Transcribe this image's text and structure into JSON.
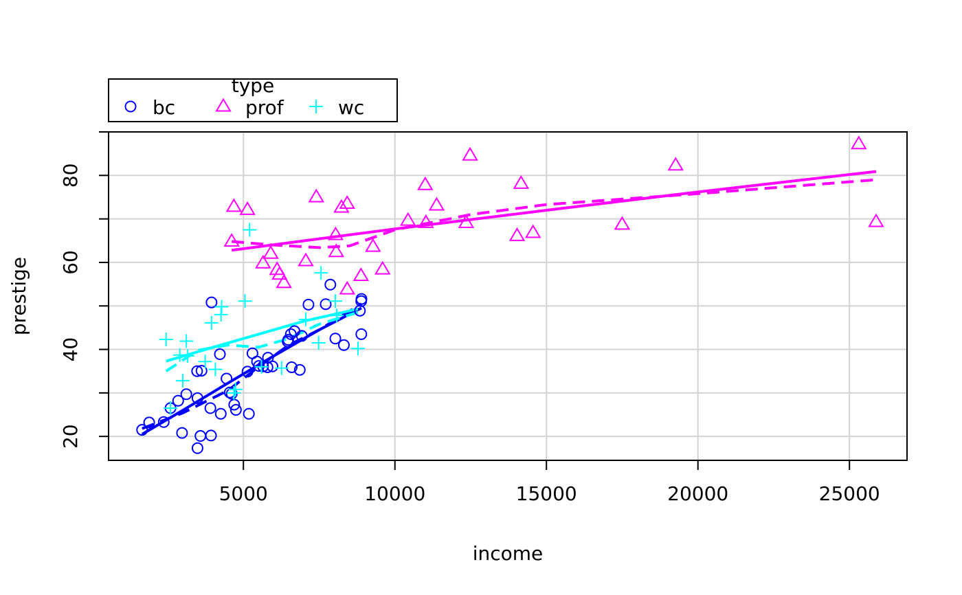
{
  "chart_data": {
    "type": "scatter",
    "xlabel": "income",
    "ylabel": "prestige",
    "xlim": [
      550,
      26900
    ],
    "ylim": [
      14.5,
      90
    ],
    "xticks": [
      5000,
      10000,
      15000,
      20000,
      25000
    ],
    "yticks": [
      20,
      40,
      60,
      80
    ],
    "grid": true,
    "legend": {
      "title": "type",
      "position": "top-left",
      "entries": [
        {
          "label": "bc",
          "marker": "circle",
          "color": "#0000ff"
        },
        {
          "label": "prof",
          "marker": "triangle",
          "color": "#ff00ff"
        },
        {
          "label": "wc",
          "marker": "plus",
          "color": "#00ffff"
        }
      ]
    },
    "series": [
      {
        "name": "bc",
        "marker": "circle",
        "color": "#0000ff",
        "points": [
          [
            1656,
            21.5
          ],
          [
            1890,
            23.2
          ],
          [
            2370,
            23.3
          ],
          [
            2594,
            26.5
          ],
          [
            2847,
            28.2
          ],
          [
            2975,
            20.8
          ],
          [
            3116,
            29.7
          ],
          [
            3485,
            28.8
          ],
          [
            3472,
            35.0
          ],
          [
            3617,
            35.1
          ],
          [
            3485,
            17.3
          ],
          [
            3582,
            20.1
          ],
          [
            3930,
            20.2
          ],
          [
            3910,
            26.5
          ],
          [
            3948,
            50.8
          ],
          [
            4224,
            38.9
          ],
          [
            4253,
            25.2
          ],
          [
            4443,
            33.3
          ],
          [
            4549,
            30.1
          ],
          [
            4614,
            29.8
          ],
          [
            4696,
            27.3
          ],
          [
            4753,
            26.1
          ],
          [
            5134,
            34.9
          ],
          [
            5180,
            25.2
          ],
          [
            5299,
            39.1
          ],
          [
            5449,
            37.2
          ],
          [
            5511,
            36.2
          ],
          [
            5648,
            36.1
          ],
          [
            5811,
            38.1
          ],
          [
            5795,
            35.9
          ],
          [
            5959,
            36.1
          ],
          [
            6462,
            41.8
          ],
          [
            6565,
            43.5
          ],
          [
            6686,
            44.2
          ],
          [
            6478,
            42.2
          ],
          [
            6593,
            35.9
          ],
          [
            6860,
            35.3
          ],
          [
            6928,
            43.1
          ],
          [
            7147,
            50.3
          ],
          [
            7716,
            50.4
          ],
          [
            7869,
            54.9
          ],
          [
            8034,
            42.5
          ],
          [
            8316,
            41.0
          ],
          [
            8845,
            48.9
          ],
          [
            8888,
            51.1
          ],
          [
            8895,
            51.6
          ],
          [
            8891,
            43.5
          ]
        ],
        "fit": [
          [
            1656,
            20.5
          ],
          [
            3000,
            26.0
          ],
          [
            4500,
            32.3
          ],
          [
            6000,
            38.5
          ],
          [
            7500,
            44.5
          ],
          [
            8895,
            49.5
          ]
        ],
        "smooth": [
          [
            1656,
            21.8
          ],
          [
            3000,
            25.4
          ],
          [
            4500,
            30.6
          ],
          [
            5500,
            36.0
          ],
          [
            6500,
            41.0
          ],
          [
            7500,
            44.5
          ],
          [
            8895,
            50.5
          ]
        ]
      },
      {
        "name": "prof",
        "marker": "triangle",
        "color": "#ff00ff",
        "points": [
          [
            4614,
            64.8
          ],
          [
            4686,
            72.8
          ],
          [
            5134,
            72.1
          ],
          [
            5648,
            59.8
          ],
          [
            5902,
            62.0
          ],
          [
            6112,
            58.3
          ],
          [
            6191,
            57.2
          ],
          [
            6336,
            55.3
          ],
          [
            7059,
            60.3
          ],
          [
            7405,
            75.0
          ],
          [
            8043,
            66.3
          ],
          [
            8062,
            62.4
          ],
          [
            8235,
            72.6
          ],
          [
            8424,
            73.5
          ],
          [
            8425,
            53.8
          ],
          [
            8880,
            56.9
          ],
          [
            9277,
            63.6
          ],
          [
            9593,
            58.4
          ],
          [
            10432,
            69.6
          ],
          [
            11000,
            77.8
          ],
          [
            11023,
            69.1
          ],
          [
            11377,
            73.1
          ],
          [
            12351,
            69.1
          ],
          [
            12480,
            84.6
          ],
          [
            14032,
            66.1
          ],
          [
            14163,
            78.1
          ],
          [
            14558,
            66.8
          ],
          [
            17498,
            68.7
          ],
          [
            19263,
            82.3
          ],
          [
            25308,
            87.2
          ],
          [
            25879,
            69.3
          ]
        ],
        "fit": [
          [
            4614,
            62.8
          ],
          [
            10000,
            67.7
          ],
          [
            15000,
            72.0
          ],
          [
            20000,
            76.2
          ],
          [
            25879,
            80.9
          ]
        ],
        "smooth": [
          [
            4614,
            64.8
          ],
          [
            6000,
            64.0
          ],
          [
            7500,
            63.4
          ],
          [
            8500,
            63.8
          ],
          [
            10000,
            67.5
          ],
          [
            12500,
            71.0
          ],
          [
            15000,
            73.3
          ],
          [
            20000,
            75.8
          ],
          [
            25879,
            79.0
          ]
        ]
      },
      {
        "name": "wc",
        "marker": "plus",
        "color": "#00ffff",
        "points": [
          [
            2448,
            42.3
          ],
          [
            2594,
            26.5
          ],
          [
            2901,
            38.7
          ],
          [
            3000,
            32.8
          ],
          [
            3116,
            41.9
          ],
          [
            3161,
            38.5
          ],
          [
            3739,
            37.2
          ],
          [
            3946,
            46.1
          ],
          [
            4075,
            35.4
          ],
          [
            4262,
            48.0
          ],
          [
            4282,
            49.8
          ],
          [
            4686,
            30.0
          ],
          [
            4741,
            30.8
          ],
          [
            5052,
            51.1
          ],
          [
            5204,
            67.5
          ],
          [
            5595,
            36.0
          ],
          [
            6259,
            35.7
          ],
          [
            7059,
            46.9
          ],
          [
            7482,
            41.5
          ],
          [
            7562,
            57.6
          ],
          [
            8034,
            51.1
          ],
          [
            8080,
            47.8
          ],
          [
            8780,
            40.2
          ]
        ],
        "fit": [
          [
            2448,
            37.3
          ],
          [
            4000,
            40.5
          ],
          [
            5500,
            43.5
          ],
          [
            7000,
            46.5
          ],
          [
            8780,
            49.3
          ]
        ],
        "smooth": [
          [
            2448,
            35.0
          ],
          [
            3500,
            39.8
          ],
          [
            4500,
            41.0
          ],
          [
            5500,
            40.5
          ],
          [
            6500,
            42.5
          ],
          [
            7500,
            45.8
          ],
          [
            8780,
            48.5
          ]
        ]
      }
    ]
  }
}
